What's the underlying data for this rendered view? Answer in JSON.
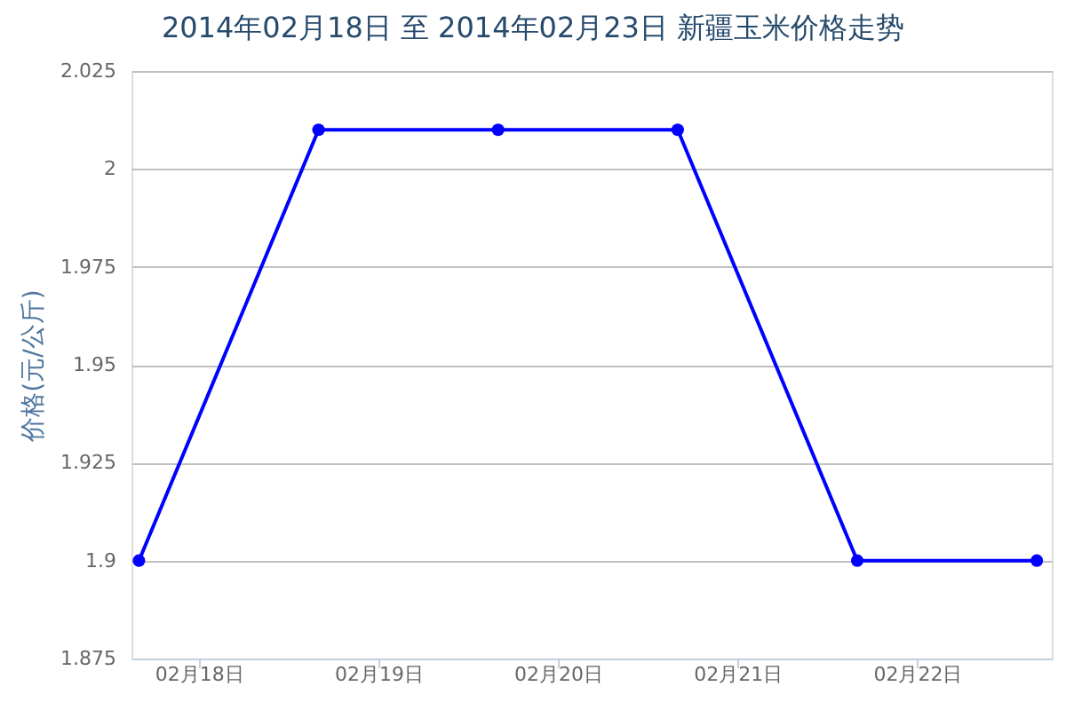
{
  "chart_data": {
    "type": "line",
    "title": "2014年02月18日 至 2014年02月23日 新疆玉米价格走势",
    "ylabel": "价格(元/公斤)",
    "x": [
      "2014-02-18",
      "2014-02-19",
      "2014-02-20",
      "2014-02-21",
      "2014-02-22",
      "2014-02-23"
    ],
    "series": [
      {
        "color": "#0000ff",
        "values": [
          1.9,
          2.01,
          2.01,
          2.01,
          1.9,
          1.9
        ]
      }
    ],
    "xlim": [
      "2014-02-17T23:00",
      "2014-02-23T02:00"
    ],
    "xticks": [
      {
        "value": "2014-02-18T08:00",
        "label": "02月18日"
      },
      {
        "value": "2014-02-19T08:00",
        "label": "02月19日"
      },
      {
        "value": "2014-02-20T08:00",
        "label": "02月20日"
      },
      {
        "value": "2014-02-21T08:00",
        "label": "02月21日"
      },
      {
        "value": "2014-02-22T08:00",
        "label": "02月22日"
      }
    ],
    "ylim": [
      1.875,
      2.025
    ],
    "yticks": [
      1.875,
      1.9,
      1.925,
      1.95,
      1.975,
      2,
      2.025
    ],
    "grid": "y",
    "marker": "circle",
    "line_style": "solid"
  }
}
